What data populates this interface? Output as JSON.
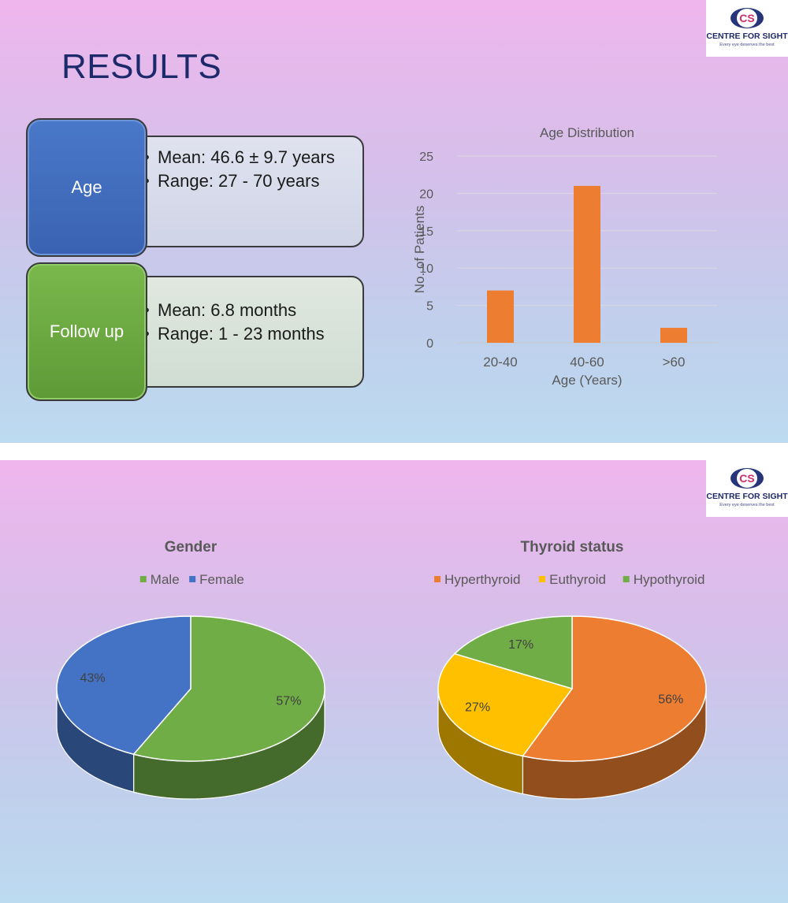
{
  "logo": {
    "brand": "CENTRE FOR SIGHT",
    "tagline": "Every eye deserves the best",
    "monogram": "CS"
  },
  "slide1": {
    "title": "RESULTS",
    "age": {
      "label": "Age",
      "items": [
        "Mean: 46.6 ± 9.7 years",
        "Range: 27 - 70 years"
      ]
    },
    "follow_up": {
      "label": "Follow up",
      "items": [
        "Mean: 6.8 months",
        "Range: 1 - 23 months"
      ]
    }
  },
  "chart_data": [
    {
      "type": "bar",
      "title": "Age Distribution",
      "xlabel": "Age (Years)",
      "ylabel": "No. of Patients",
      "categories": [
        "20-40",
        "40-60",
        ">60"
      ],
      "values": [
        7,
        21,
        2
      ],
      "ylim": [
        0,
        25
      ],
      "yticks": [
        0,
        5,
        10,
        15,
        20,
        25
      ],
      "grid": true,
      "color": "#ed7d31"
    },
    {
      "type": "pie",
      "title": "Gender",
      "categories": [
        "Male",
        "Female"
      ],
      "values": [
        57,
        43
      ],
      "labels": [
        "57%",
        "43%"
      ],
      "colors": [
        "#70ad47",
        "#4472c4"
      ],
      "legend": "top",
      "style": "3d"
    },
    {
      "type": "pie",
      "title": "Thyroid status",
      "categories": [
        "Hyperthyroid",
        "Euthyroid",
        "Hypothyroid"
      ],
      "values": [
        56,
        27,
        17
      ],
      "labels": [
        "56%",
        "27%",
        "17%"
      ],
      "colors": [
        "#ed7d31",
        "#ffc000",
        "#70ad47"
      ],
      "legend": "top",
      "style": "3d"
    }
  ]
}
